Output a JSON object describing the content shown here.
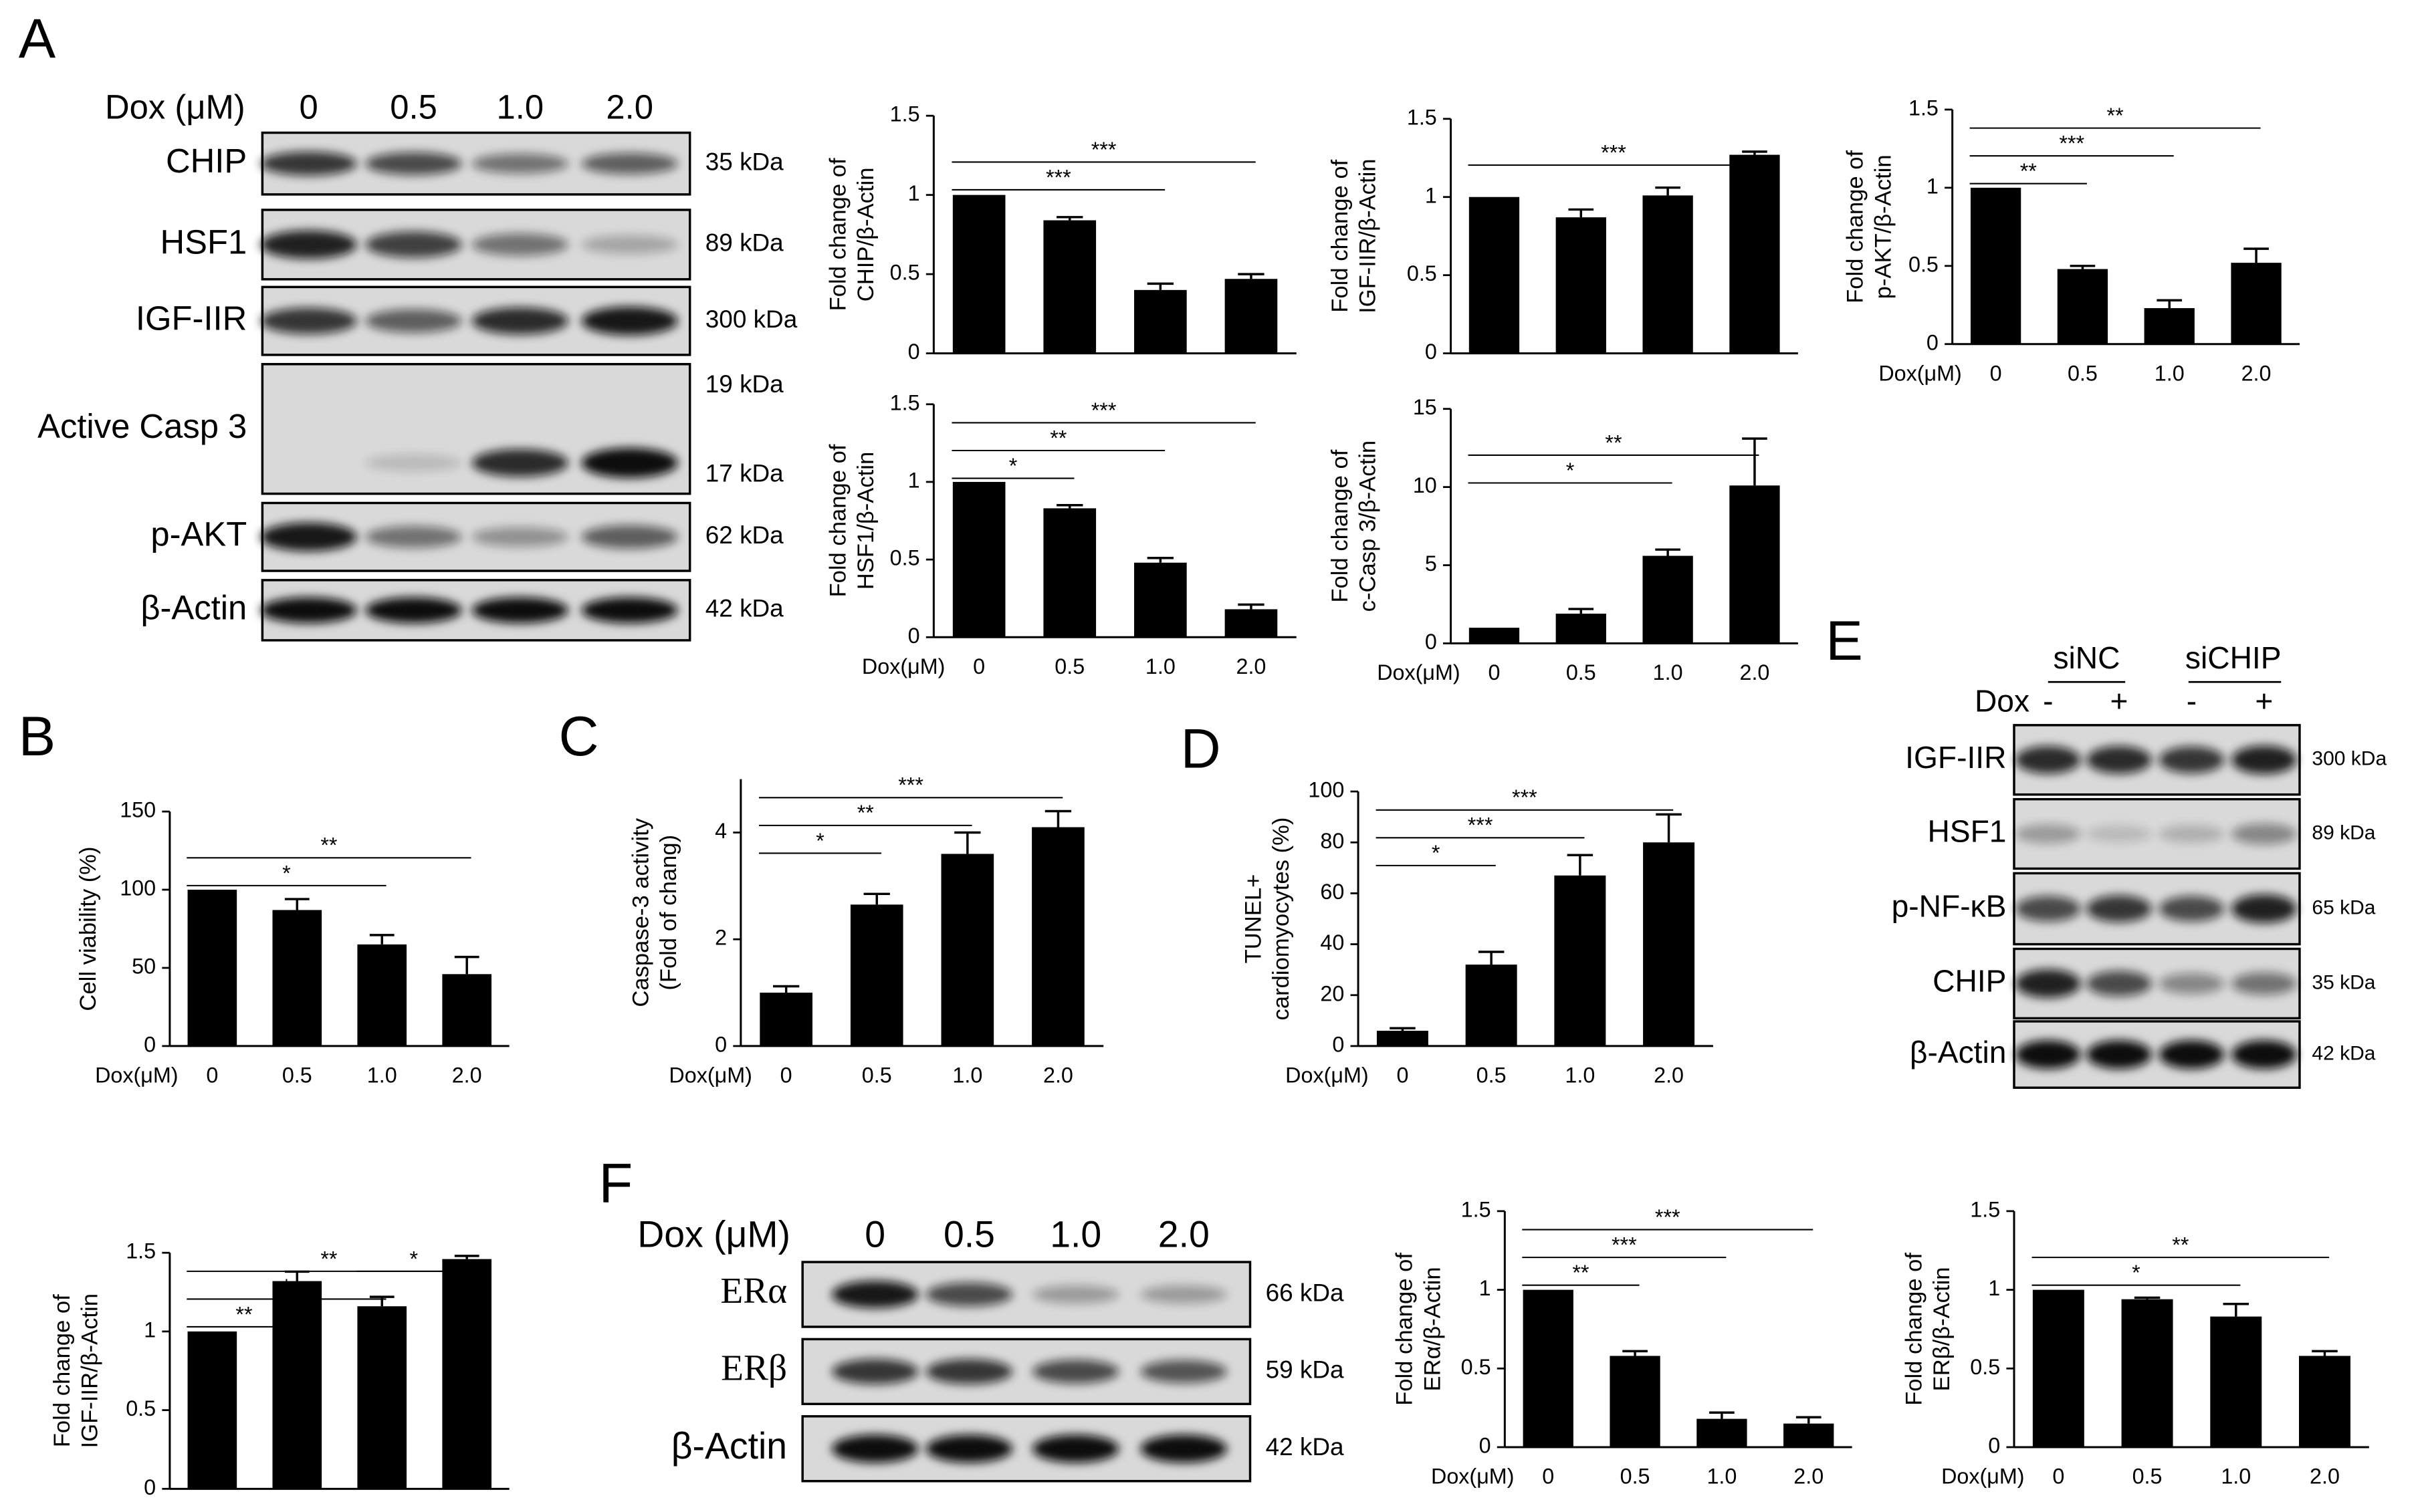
{
  "panel_labels": [
    "A",
    "B",
    "C",
    "D",
    "E",
    "F"
  ],
  "blots": [
    {
      "header": "Dox (μM)",
      "lanes": [
        "0",
        "0.5",
        "1.0",
        "2.0"
      ],
      "rows": [
        {
          "name": "CHIP",
          "sizes": [
            "35 kDa"
          ]
        },
        {
          "name": "HSF1",
          "sizes": [
            "89 kDa"
          ]
        },
        {
          "name": "IGF-IIR",
          "sizes": [
            "300 kDa"
          ]
        },
        {
          "name": "Active Casp 3",
          "sizes": [
            "19 kDa",
            "17 kDa"
          ]
        },
        {
          "name": "p-AKT",
          "sizes": [
            "62 kDa"
          ]
        },
        {
          "name": "β-Actin",
          "sizes": [
            "42 kDa"
          ]
        }
      ]
    },
    {
      "groups": [
        "siNC",
        "siCHIP"
      ],
      "header": "Dox",
      "lanes": [
        "-",
        "+",
        "-",
        "+"
      ],
      "rows": [
        {
          "name": "IGF-IIR",
          "sizes": [
            "300 kDa"
          ]
        },
        {
          "name": "HSF1",
          "sizes": [
            "89 kDa"
          ]
        },
        {
          "name": "p-NF-κB",
          "sizes": [
            "65 kDa"
          ]
        },
        {
          "name": "CHIP",
          "sizes": [
            "35 kDa"
          ]
        },
        {
          "name": "β-Actin",
          "sizes": [
            "42 kDa"
          ]
        }
      ]
    },
    {
      "header": "Dox (μM)",
      "lanes": [
        "0",
        "0.5",
        "1.0",
        "2.0"
      ],
      "rows": [
        {
          "name": "ERα",
          "sizes": [
            "66 kDa"
          ]
        },
        {
          "name": "ERβ",
          "sizes": [
            "59 kDa"
          ]
        },
        {
          "name": "β-Actin",
          "sizes": [
            "42 kDa"
          ]
        }
      ]
    }
  ],
  "chart_data": [
    {
      "type": "bar",
      "ylabel": [
        "Fold change of",
        "CHIP/β-Actin"
      ],
      "categories": [
        null,
        null,
        null,
        null
      ],
      "values": [
        1,
        0.84,
        0.4,
        0.47
      ],
      "errors": [
        0,
        0.02,
        0.04,
        0.03
      ],
      "color": "#000000",
      "ylim": [
        0,
        1.5
      ],
      "yticks": [
        0,
        0.5,
        1,
        1.5
      ],
      "brackets": [
        {
          "label": "***",
          "from": 0,
          "to": 3
        },
        {
          "label": "***",
          "from": 0,
          "to": 2
        }
      ]
    },
    {
      "type": "bar",
      "ylabel": [
        "Fold change of",
        "IGF-IIR/β-Actin"
      ],
      "categories": [
        null,
        null,
        null,
        null
      ],
      "values": [
        1,
        0.87,
        1.01,
        1.27
      ],
      "errors": [
        0,
        0.05,
        0.05,
        0.02
      ],
      "color": "#000000",
      "ylim": [
        0,
        1.5
      ],
      "yticks": [
        0,
        0.5,
        1,
        1.5
      ],
      "brackets": [
        {
          "label": "***",
          "from": 0,
          "to": 3
        }
      ]
    },
    {
      "type": "bar",
      "ylabel": [
        "Fold change of",
        "p-AKT/β-Actin"
      ],
      "xlabel": "Dox(μM)",
      "categories": [
        "0",
        "0.5",
        "1.0",
        "2.0"
      ],
      "values": [
        1,
        0.48,
        0.23,
        0.52
      ],
      "errors": [
        0,
        0.02,
        0.05,
        0.09
      ],
      "color": "#000000",
      "ylim": [
        0,
        1.5
      ],
      "yticks": [
        0,
        0.5,
        1,
        1.5
      ],
      "brackets": [
        {
          "label": "**",
          "from": 0,
          "to": 3
        },
        {
          "label": "***",
          "from": 0,
          "to": 2
        },
        {
          "label": "**",
          "from": 0,
          "to": 1
        }
      ]
    },
    {
      "type": "bar",
      "ylabel": [
        "Fold change of",
        "HSF1/β-Actin"
      ],
      "xlabel": "Dox(μM)",
      "categories": [
        "0",
        "0.5",
        "1.0",
        "2.0"
      ],
      "values": [
        1,
        0.83,
        0.48,
        0.18
      ],
      "errors": [
        0,
        0.02,
        0.03,
        0.03
      ],
      "color": "#000000",
      "ylim": [
        0,
        1.5
      ],
      "yticks": [
        0,
        0.5,
        1,
        1.5
      ],
      "brackets": [
        {
          "label": "***",
          "from": 0,
          "to": 3
        },
        {
          "label": "**",
          "from": 0,
          "to": 2
        },
        {
          "label": "*",
          "from": 0,
          "to": 1
        }
      ]
    },
    {
      "type": "bar",
      "ylabel": [
        "Fold change of",
        "c-Casp 3/β-Actin"
      ],
      "xlabel": "Dox(μM)",
      "categories": [
        "0",
        "0.5",
        "1.0",
        "2.0"
      ],
      "values": [
        1,
        1.9,
        5.6,
        10.1
      ],
      "errors": [
        0,
        0.3,
        0.4,
        3.0
      ],
      "color": "#000000",
      "ylim": [
        0,
        15
      ],
      "yticks": [
        0,
        5,
        10,
        15
      ],
      "brackets": [
        {
          "label": "**",
          "from": 0,
          "to": 3
        },
        {
          "label": "*",
          "from": 0,
          "to": 2
        }
      ]
    },
    {
      "type": "bar",
      "ylabel": [
        "Cell viability (%)"
      ],
      "xlabel": "Dox(μM)",
      "categories": [
        "0",
        "0.5",
        "1.0",
        "2.0"
      ],
      "values": [
        100,
        87,
        65,
        46
      ],
      "errors": [
        0,
        7,
        6,
        11
      ],
      "color": "#000000",
      "ylim": [
        0,
        150
      ],
      "yticks": [
        0,
        50,
        100,
        150
      ],
      "brackets": [
        {
          "label": "**",
          "from": 0,
          "to": 3
        },
        {
          "label": "*",
          "from": 0,
          "to": 2
        }
      ]
    },
    {
      "type": "bar",
      "ylabel": [
        "Caspase-3 activity",
        "(Fold of chang)"
      ],
      "xlabel": "Dox(μM)",
      "categories": [
        "0",
        "0.5",
        "1.0",
        "2.0"
      ],
      "values": [
        1,
        2.65,
        3.6,
        4.1
      ],
      "errors": [
        0.12,
        0.2,
        0.4,
        0.3
      ],
      "color": "#000000",
      "ylim": [
        0,
        5
      ],
      "yticks": [
        0,
        2,
        4
      ],
      "brackets": [
        {
          "label": "***",
          "from": 0,
          "to": 3
        },
        {
          "label": "**",
          "from": 0,
          "to": 2
        },
        {
          "label": "*",
          "from": 0,
          "to": 1
        }
      ]
    },
    {
      "type": "bar",
      "ylabel": [
        "TUNEL+",
        "cardiomyocytes (%)"
      ],
      "xlabel": "Dox(μM)",
      "categories": [
        "0",
        "0.5",
        "1.0",
        "2.0"
      ],
      "values": [
        6,
        32,
        67,
        80
      ],
      "errors": [
        1,
        5,
        8,
        11
      ],
      "color": "#000000",
      "ylim": [
        0,
        100
      ],
      "yticks": [
        0,
        20,
        40,
        60,
        80,
        100
      ],
      "brackets": [
        {
          "label": "***",
          "from": 0,
          "to": 3
        },
        {
          "label": "***",
          "from": 0,
          "to": 2
        },
        {
          "label": "*",
          "from": 0,
          "to": 1
        }
      ]
    },
    {
      "type": "bar",
      "ylabel": [
        "Fold change of",
        "IGF-IIR/β-Actin"
      ],
      "categories": [
        null,
        null,
        null,
        null
      ],
      "values": [
        1,
        1.32,
        1.16,
        1.46
      ],
      "errors": [
        0,
        0.06,
        0.06,
        0.02
      ],
      "color": "#000000",
      "ylim": [
        0,
        1.5
      ],
      "yticks": [
        0,
        0.5,
        1,
        1.5
      ],
      "brackets": [
        {
          "label": "**",
          "from": 0,
          "to": 3
        },
        {
          "label": "*",
          "from": 0,
          "to": 2
        },
        {
          "label": "**",
          "from": 0,
          "to": 1
        },
        {
          "label": "*",
          "from": 2,
          "to": 3
        }
      ]
    },
    {
      "type": "bar",
      "ylabel": [
        "Fold change of",
        "ERα/β-Actin"
      ],
      "xlabel": "Dox(μM)",
      "categories": [
        "0",
        "0.5",
        "1.0",
        "2.0"
      ],
      "values": [
        1,
        0.58,
        0.18,
        0.15
      ],
      "errors": [
        0,
        0.03,
        0.04,
        0.04
      ],
      "color": "#000000",
      "ylim": [
        0,
        1.5
      ],
      "yticks": [
        0,
        0.5,
        1,
        1.5
      ],
      "brackets": [
        {
          "label": "***",
          "from": 0,
          "to": 3
        },
        {
          "label": "***",
          "from": 0,
          "to": 2
        },
        {
          "label": "**",
          "from": 0,
          "to": 1
        }
      ]
    },
    {
      "type": "bar",
      "ylabel": [
        "Fold change of",
        "ERβ/β-Actin"
      ],
      "xlabel": "Dox(μM)",
      "categories": [
        "0",
        "0.5",
        "1.0",
        "2.0"
      ],
      "values": [
        1,
        0.94,
        0.83,
        0.58
      ],
      "errors": [
        0,
        0.01,
        0.08,
        0.03
      ],
      "color": "#000000",
      "ylim": [
        0,
        1.5
      ],
      "yticks": [
        0,
        0.5,
        1,
        1.5
      ],
      "brackets": [
        {
          "label": "**",
          "from": 0,
          "to": 3
        },
        {
          "label": "*",
          "from": 0,
          "to": 2
        }
      ]
    }
  ]
}
